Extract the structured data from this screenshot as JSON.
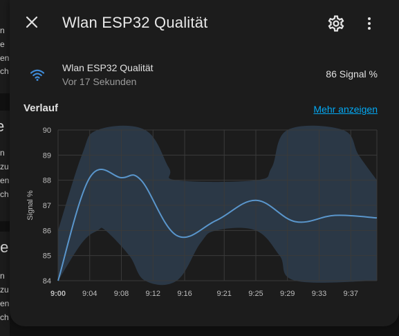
{
  "background_fragments": [
    "n",
    "e",
    "en",
    "ch",
    "e",
    "n",
    "zu",
    "en",
    "ch",
    "te",
    "n",
    "zu",
    "en",
    "ch"
  ],
  "dialog": {
    "title": "Wlan ESP32 Qualität",
    "icons": {
      "close": "close-icon",
      "settings": "gear-icon",
      "more": "dots-vertical-icon"
    }
  },
  "entity": {
    "icon": "wifi-icon",
    "name": "Wlan ESP32 Qualität",
    "last_changed": "Vor 17 Sekunden",
    "state": "86 Signal %"
  },
  "history": {
    "title": "Verlauf",
    "more_link": "Mehr anzeigen"
  },
  "colors": {
    "accent": "#03a9f4",
    "line": "#5a96cc",
    "band": "#2e3d4e",
    "icon": "#3f8ad6"
  },
  "chart_data": {
    "type": "line",
    "ylabel": "Signal %",
    "xlabel": "",
    "ylim": [
      84,
      90
    ],
    "yticks": [
      84,
      85,
      86,
      87,
      88,
      89,
      90
    ],
    "x_ticks": [
      "9:00",
      "9:04",
      "9:08",
      "9:12",
      "9:16",
      "9:21",
      "9:25",
      "9:29",
      "9:33",
      "9:37"
    ],
    "x_tick_minutes": [
      0,
      4,
      8,
      12,
      16,
      21,
      25,
      29,
      33,
      37
    ],
    "x_range_minutes": [
      0,
      40.3
    ],
    "series": [
      {
        "points": [
          [
            0,
            84
          ],
          [
            4,
            88.1
          ],
          [
            8,
            88.1
          ],
          [
            10.5,
            88.0
          ],
          [
            15,
            85.8
          ],
          [
            20,
            86.4
          ],
          [
            25,
            87.2
          ],
          [
            30,
            86.35
          ],
          [
            35,
            86.6
          ],
          [
            40.3,
            86.5
          ]
        ]
      }
    ],
    "band": {
      "min": [
        [
          0,
          84
        ],
        [
          3,
          85.5
        ],
        [
          5,
          86
        ],
        [
          6,
          86
        ],
        [
          9,
          85
        ],
        [
          11,
          84
        ],
        [
          15,
          84
        ],
        [
          18,
          85.5
        ],
        [
          20,
          86
        ],
        [
          25,
          86
        ],
        [
          28,
          85
        ],
        [
          30,
          84
        ],
        [
          40.3,
          84
        ]
      ],
      "max": [
        [
          0,
          86
        ],
        [
          3,
          89
        ],
        [
          5,
          90
        ],
        [
          11,
          90
        ],
        [
          14,
          88.5
        ],
        [
          15,
          88
        ],
        [
          25,
          88
        ],
        [
          27,
          88.5
        ],
        [
          29,
          90
        ],
        [
          36,
          90
        ],
        [
          38,
          89
        ],
        [
          40.3,
          88
        ]
      ]
    }
  }
}
